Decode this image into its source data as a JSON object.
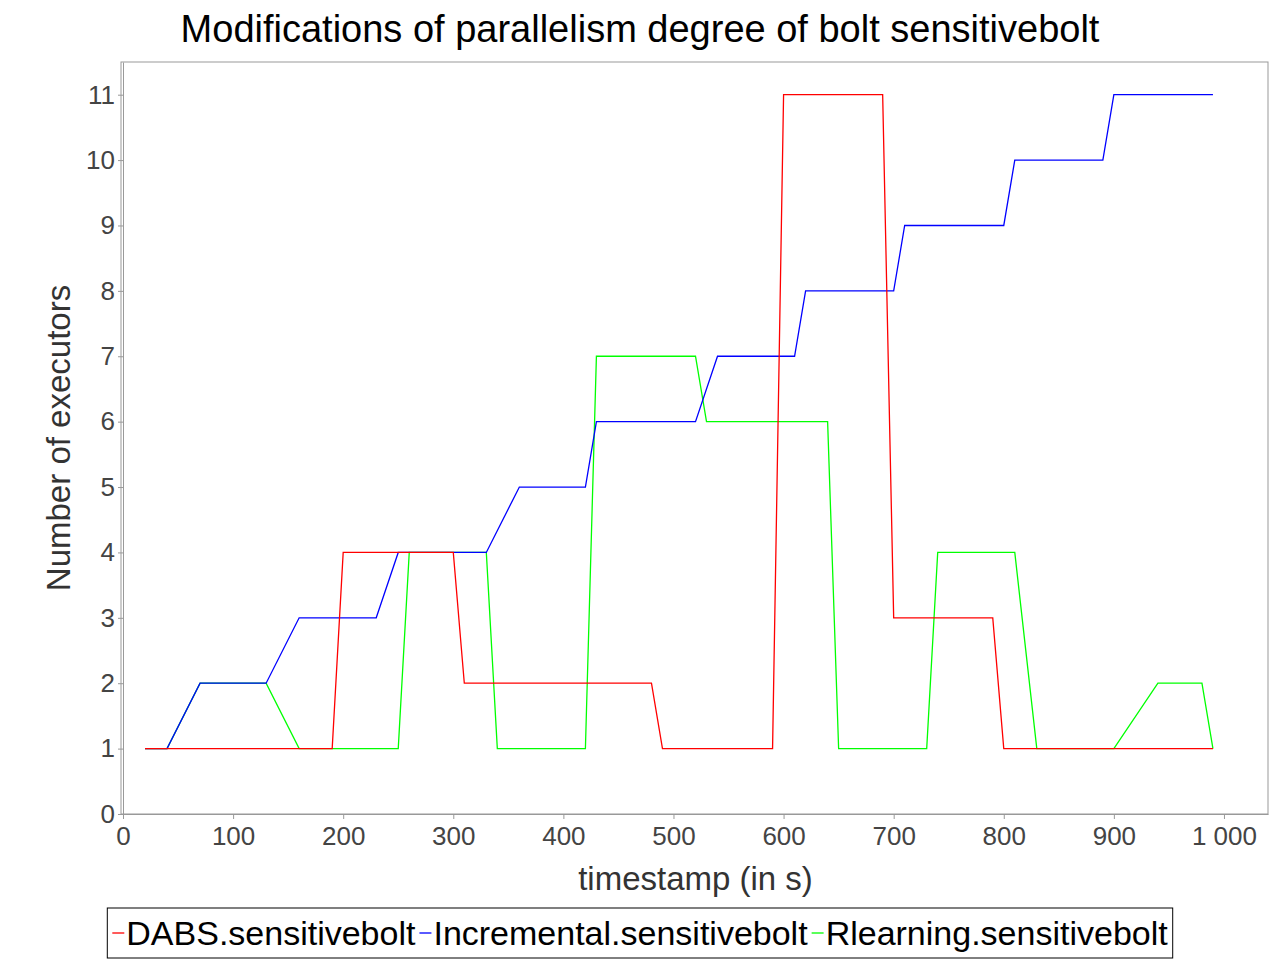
{
  "chart_data": {
    "type": "line",
    "title": "Modifications of parallelism degree of bolt sensitivebolt",
    "x_label": "timestamp (in s)",
    "y_label": "Number of executors",
    "xlim": [
      0,
      1040
    ],
    "ylim": [
      0,
      11.5
    ],
    "xticks": [
      0,
      100,
      200,
      300,
      400,
      500,
      600,
      700,
      800,
      900,
      {
        "value": 1000,
        "label": "1 000"
      }
    ],
    "yticks": [
      0,
      1,
      2,
      3,
      4,
      5,
      6,
      7,
      8,
      9,
      10,
      11
    ],
    "grid": false,
    "legend": "bottom",
    "series": [
      {
        "name": "DABS.sensitivebolt",
        "color": "#ff0000",
        "x": [
          20,
          190,
          200,
          300,
          310,
          480,
          490,
          590,
          600,
          690,
          700,
          790,
          800,
          990
        ],
        "values": [
          1,
          1,
          4,
          4,
          2,
          2,
          1,
          1,
          11,
          11,
          3,
          3,
          1,
          1
        ]
      },
      {
        "name": "Incremental.sensitivebolt",
        "color": "#0000ff",
        "x": [
          20,
          40,
          70,
          130,
          160,
          230,
          250,
          330,
          360,
          420,
          430,
          520,
          540,
          610,
          620,
          700,
          710,
          800,
          810,
          890,
          900,
          990
        ],
        "values": [
          1,
          1,
          2,
          2,
          3,
          3,
          4,
          4,
          5,
          5,
          6,
          6,
          7,
          7,
          8,
          8,
          9,
          9,
          10,
          10,
          11,
          11
        ]
      },
      {
        "name": "Rlearning.sensitivebolt",
        "color": "#00ff00",
        "x": [
          20,
          40,
          70,
          130,
          160,
          250,
          260,
          330,
          340,
          420,
          430,
          520,
          530,
          640,
          650,
          730,
          740,
          810,
          830,
          900,
          940,
          980,
          990
        ],
        "values": [
          1,
          1,
          2,
          2,
          1,
          1,
          4,
          4,
          1,
          1,
          7,
          7,
          6,
          6,
          1,
          1,
          4,
          4,
          1,
          1,
          2,
          2,
          1
        ]
      }
    ]
  }
}
